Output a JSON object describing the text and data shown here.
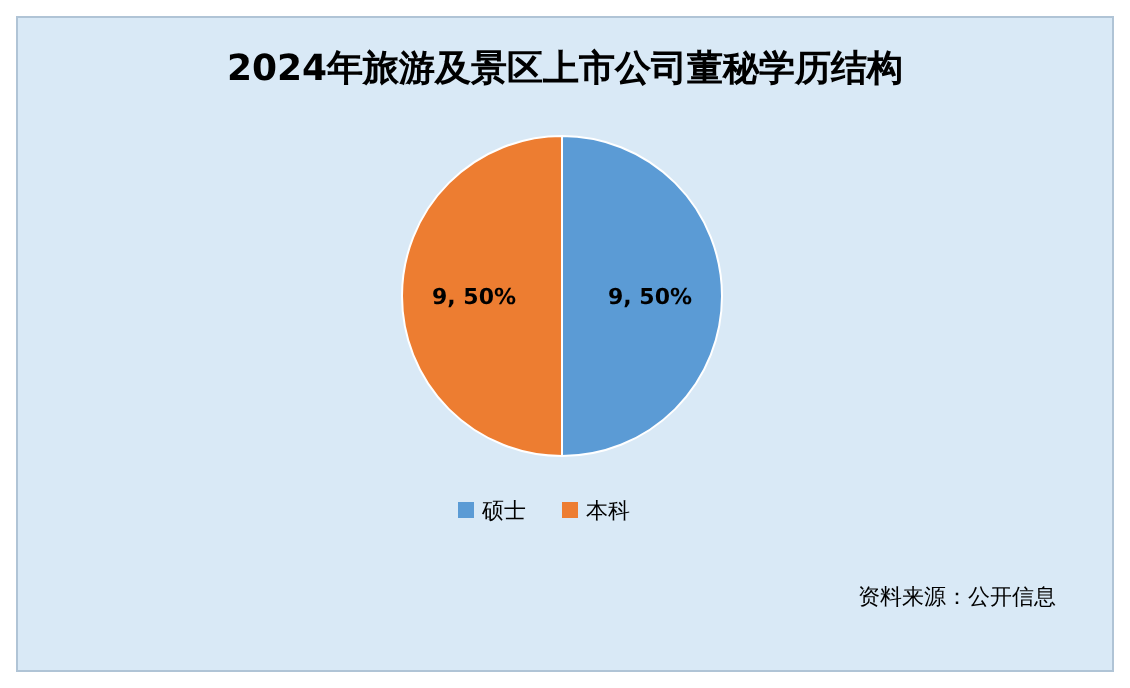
{
  "chart_data": {
    "type": "pie",
    "title": "2024年旅游及景区上市公司董秘学历结构",
    "categories": [
      "硕士",
      "本科"
    ],
    "values": [
      9,
      9
    ],
    "colors": [
      "#5b9bd5",
      "#ed7d31"
    ],
    "value_labels": [
      "9, 50%",
      "9, 50%"
    ],
    "legend": "bottom",
    "annotations": [
      "资料来源：公开信息"
    ]
  }
}
